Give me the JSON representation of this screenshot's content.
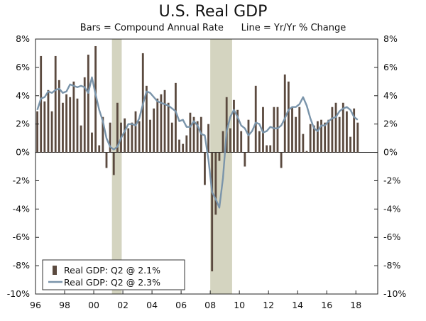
{
  "chart_data": {
    "type": "bar+line",
    "title": "U.S. Real GDP",
    "subtitle": "Bars = Compound Annual Rate      Line = Yr/Yr % Change",
    "ylim": [
      -10,
      8
    ],
    "yticks": [
      8,
      6,
      4,
      2,
      0,
      -2,
      -4,
      -6,
      -8,
      -10
    ],
    "ytick_labels_left": [
      "8%",
      "6%",
      "4%",
      "2%",
      "0%",
      "-2%",
      "-4%",
      "-6%",
      "-8%",
      "-10%"
    ],
    "ytick_labels_right": [
      "8%",
      "6%",
      "4%",
      "2%",
      "0%",
      "-2%",
      "-4%",
      "-6%",
      "-8%",
      "-10%"
    ],
    "xlim": [
      1996.0,
      2019.5
    ],
    "xticks": [
      1996,
      1998,
      2000,
      2002,
      2004,
      2006,
      2008,
      2010,
      2012,
      2014,
      2016,
      2018
    ],
    "xtick_labels": [
      "96",
      "98",
      "00",
      "02",
      "04",
      "06",
      "08",
      "10",
      "12",
      "14",
      "16",
      "18"
    ],
    "recessions": [
      [
        2001.25,
        2001.92
      ],
      [
        2008.0,
        2009.5
      ]
    ],
    "bar_color": "#5b4a3f",
    "line_color": "#7a94aa",
    "recession_color": "#d4d4c0",
    "start_year": 1996,
    "series": [
      {
        "name": "Real GDP: Q2 @ 2.1%",
        "kind": "bar",
        "values": [
          2.9,
          6.8,
          3.6,
          4.4,
          2.9,
          6.8,
          5.1,
          3.5,
          4.1,
          3.9,
          5.0,
          3.8,
          1.9,
          5.3,
          6.9,
          1.4,
          7.5,
          0.5,
          2.5,
          -1.1,
          2.1,
          -1.6,
          3.5,
          2.1,
          2.4,
          1.7,
          2.1,
          2.9,
          2.2,
          7.0,
          4.7,
          2.3,
          3.1,
          3.8,
          4.1,
          4.4,
          3.5,
          2.1,
          4.9,
          0.9,
          0.6,
          1.2,
          2.8,
          2.5,
          2.2,
          2.5,
          -2.3,
          2.0,
          -8.4,
          -4.4,
          -0.6,
          1.5,
          3.9,
          1.7,
          3.7,
          3.0,
          1.5,
          -1.0,
          2.3,
          0.0,
          4.7,
          1.5,
          3.2,
          0.5,
          0.5,
          3.2,
          3.2,
          -1.1,
          5.5,
          5.0,
          3.2,
          2.5,
          3.2,
          1.3,
          0.1,
          2.0,
          1.9,
          2.2,
          2.3,
          2.1,
          2.3,
          3.2,
          3.5,
          2.5,
          3.5,
          2.9,
          1.1,
          3.1,
          2.1
        ],
        "note": ""
      },
      {
        "name": "Real GDP: Q2 @ 2.3%",
        "kind": "line",
        "values": [
          3.0,
          3.8,
          3.9,
          4.3,
          4.2,
          4.4,
          4.5,
          4.2,
          4.3,
          4.8,
          4.7,
          4.6,
          4.7,
          4.6,
          4.2,
          5.3,
          4.1,
          3.0,
          2.2,
          1.0,
          0.4,
          0.2,
          0.4,
          1.0,
          1.5,
          2.0,
          2.0,
          1.9,
          2.4,
          3.4,
          4.3,
          4.2,
          3.9,
          3.6,
          3.5,
          3.4,
          3.3,
          3.1,
          2.9,
          2.2,
          2.3,
          1.8,
          1.8,
          2.2,
          1.9,
          1.3,
          1.2,
          -0.5,
          -2.8,
          -3.3,
          -3.9,
          -1.8,
          1.5,
          2.5,
          3.0,
          2.5,
          1.9,
          1.7,
          1.2,
          1.5,
          2.1,
          2.0,
          1.4,
          1.5,
          1.8,
          1.7,
          1.7,
          1.9,
          2.4,
          3.0,
          3.2,
          3.2,
          3.4,
          3.9,
          3.3,
          2.4,
          1.7,
          1.5,
          1.9,
          1.9,
          2.2,
          2.4,
          2.5,
          2.9,
          3.1,
          3.2,
          3.0,
          2.5,
          2.3
        ]
      }
    ]
  }
}
